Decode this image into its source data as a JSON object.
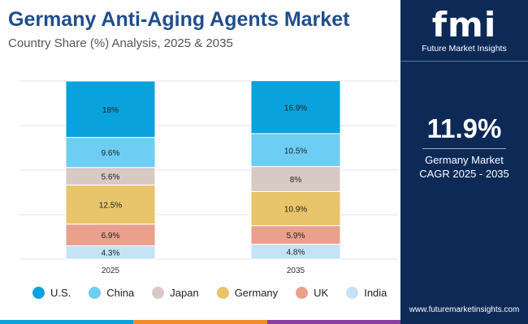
{
  "header": {
    "title": "Germany Anti-Aging Agents Market",
    "subtitle": "Country Share (%) Analysis, 2025 & 2035"
  },
  "chart_data": {
    "type": "bar",
    "stacked": true,
    "categories": [
      "2025",
      "2035"
    ],
    "series": [
      {
        "name": "U.S.",
        "color": "#0aa2dd",
        "values": [
          18,
          16.9
        ],
        "labels": [
          "18%",
          "16.9%"
        ]
      },
      {
        "name": "China",
        "color": "#6dcdf3",
        "values": [
          9.6,
          10.5
        ],
        "labels": [
          "9.6%",
          "10.5%"
        ]
      },
      {
        "name": "Japan",
        "color": "#d9c9c4",
        "values": [
          5.6,
          8
        ],
        "labels": [
          "5.6%",
          "8%"
        ]
      },
      {
        "name": "Germany",
        "color": "#e8c56a",
        "values": [
          12.5,
          10.9
        ],
        "labels": [
          "12.5%",
          "10.9%"
        ]
      },
      {
        "name": "UK",
        "color": "#eaa08c",
        "values": [
          6.9,
          5.9
        ],
        "labels": [
          "6.9%",
          "5.9%"
        ]
      },
      {
        "name": "India",
        "color": "#c4e3f5",
        "values": [
          4.3,
          4.8
        ],
        "labels": [
          "4.3%",
          "4.8%"
        ]
      }
    ],
    "ylim": [
      0,
      56.9
    ],
    "grid": true,
    "legend_position": "bottom"
  },
  "brand": {
    "logo_text": "fmi",
    "logo_subtext": "Future Market Insights",
    "website": "www.futuremarketinsights.com"
  },
  "kpi": {
    "value": "11.9%",
    "label_line1": "Germany Market",
    "label_line2": "CAGR 2025 - 2035"
  },
  "colors": {
    "title": "#1f4e8c",
    "panel": "#0d2a57",
    "bottom_bar": [
      "#0aa2dd",
      "#f28c28",
      "#8a3ea0"
    ]
  }
}
